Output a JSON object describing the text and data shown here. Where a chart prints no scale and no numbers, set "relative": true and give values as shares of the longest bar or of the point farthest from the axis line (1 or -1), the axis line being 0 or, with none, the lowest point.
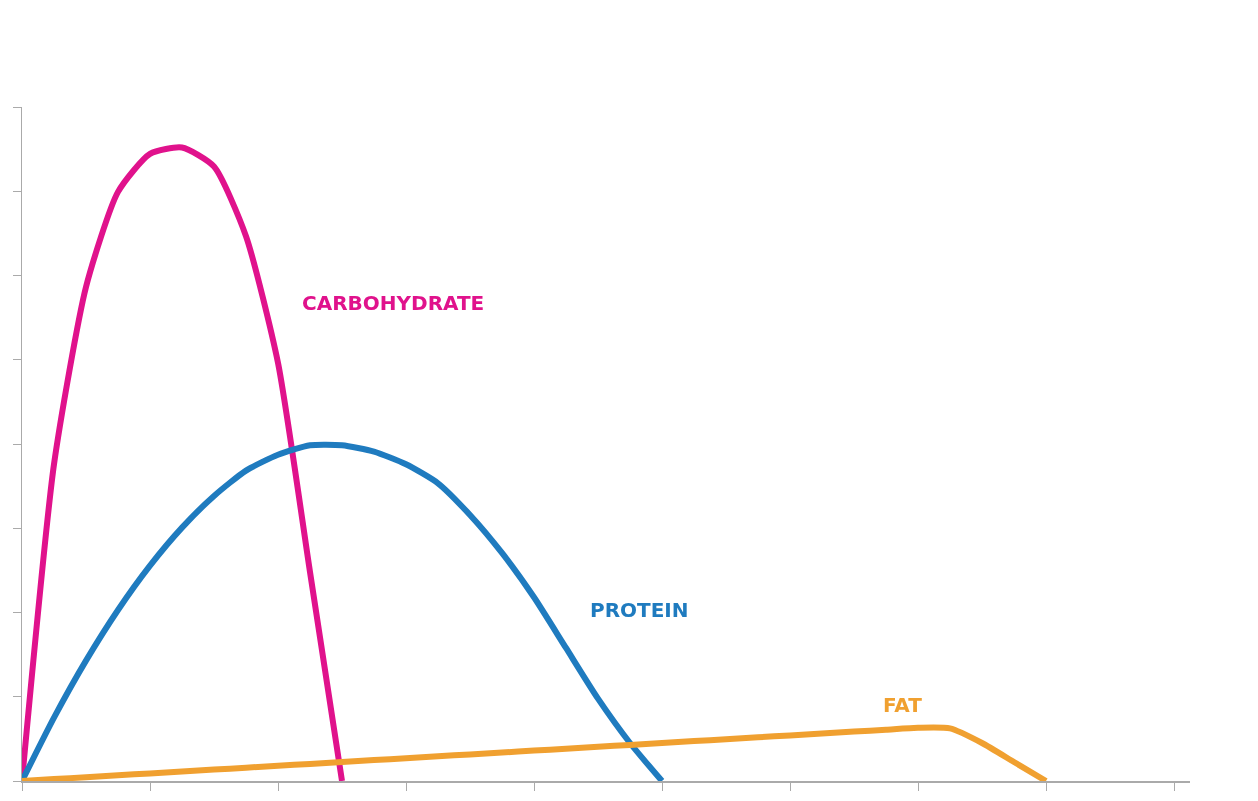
{
  "chart_data": {
    "type": "line",
    "relative": true,
    "legend": false,
    "marker": "none",
    "line_style": "solid",
    "categories": [
      null,
      null,
      null,
      null,
      null,
      null,
      null,
      null,
      null,
      null,
      null,
      null,
      null,
      null,
      null,
      null,
      null,
      null,
      null,
      null,
      null,
      null,
      null,
      null,
      null,
      null,
      null,
      null,
      null,
      null,
      null,
      null,
      null,
      null,
      null,
      null,
      null
    ],
    "series": [
      {
        "name": "CARBOHYDRATE",
        "color": "#e0128c",
        "values": [
          0,
          0.5,
          0.78,
          0.93,
          0.99,
          1.0,
          0.97,
          0.86,
          0.66,
          0.33,
          0,
          null,
          null,
          null,
          null,
          null,
          null,
          null,
          null,
          null,
          null,
          null,
          null,
          null,
          null,
          null,
          null,
          null,
          null,
          null,
          null,
          null,
          null,
          null,
          null,
          null,
          null
        ]
      },
      {
        "name": "PROTEIN",
        "color": "#1f7bbf",
        "values": [
          0,
          0.1,
          0.19,
          0.27,
          0.34,
          0.4,
          0.45,
          0.49,
          0.515,
          0.53,
          0.53,
          0.52,
          0.5,
          0.47,
          0.42,
          0.36,
          0.29,
          0.21,
          0.13,
          0.06,
          0,
          null,
          null,
          null,
          null,
          null,
          null,
          null,
          null,
          null,
          null,
          null,
          null,
          null,
          null,
          null,
          null
        ]
      },
      {
        "name": "FAT",
        "color": "#f0a030",
        "values": [
          0,
          0.003,
          0.006,
          0.009,
          0.012,
          0.015,
          0.018,
          0.021,
          0.024,
          0.027,
          0.03,
          0.033,
          0.036,
          0.039,
          0.042,
          0.045,
          0.048,
          0.051,
          0.054,
          0.057,
          0.06,
          0.063,
          0.066,
          0.069,
          0.072,
          0.075,
          0.078,
          0.081,
          0.084,
          0.083,
          0.06,
          0.03,
          0,
          null,
          null,
          null,
          null
        ]
      }
    ]
  }
}
